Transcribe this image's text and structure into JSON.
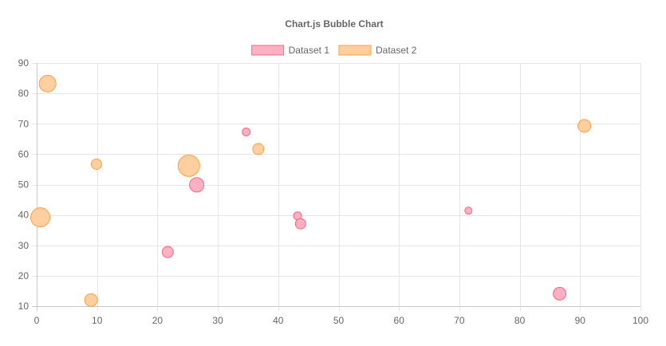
{
  "chart_data": {
    "type": "bubble",
    "title": "Chart.js Bubble Chart",
    "legend_position": "top",
    "grid": true,
    "xlim": [
      0,
      100
    ],
    "ylim": [
      10,
      90
    ],
    "x_ticks": [
      "0",
      "10",
      "20",
      "30",
      "40",
      "50",
      "60",
      "70",
      "80",
      "90",
      "100"
    ],
    "y_ticks": [
      "10",
      "20",
      "30",
      "40",
      "50",
      "60",
      "70",
      "80",
      "90"
    ],
    "series": [
      {
        "name": "Dataset 1",
        "fill": "#ffb1c1",
        "stroke": "#ff6384",
        "points": [
          {
            "x": 34.7,
            "y": 67.3,
            "r": 5
          },
          {
            "x": 21.7,
            "y": 27.8,
            "r": 7
          },
          {
            "x": 26.5,
            "y": 49.9,
            "r": 9
          },
          {
            "x": 43.2,
            "y": 39.7,
            "r": 5
          },
          {
            "x": 43.7,
            "y": 37.1,
            "r": 6.5
          },
          {
            "x": 71.5,
            "y": 41.4,
            "r": 4.5
          },
          {
            "x": 86.6,
            "y": 14.1,
            "r": 8
          }
        ]
      },
      {
        "name": "Dataset 2",
        "fill": "#ffcf9f",
        "stroke": "#ff9f40",
        "points": [
          {
            "x": 1.8,
            "y": 83.2,
            "r": 10.5
          },
          {
            "x": 9.9,
            "y": 56.7,
            "r": 6.5
          },
          {
            "x": 25.2,
            "y": 56.2,
            "r": 13.5
          },
          {
            "x": 36.7,
            "y": 61.7,
            "r": 7
          },
          {
            "x": 0.6,
            "y": 39.2,
            "r": 12
          },
          {
            "x": 9.0,
            "y": 12.0,
            "r": 8
          },
          {
            "x": 90.7,
            "y": 69.3,
            "r": 8
          }
        ]
      }
    ]
  }
}
